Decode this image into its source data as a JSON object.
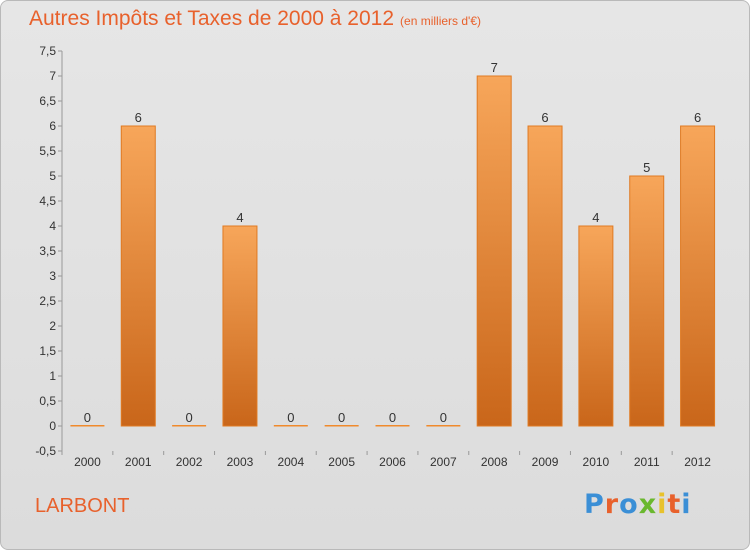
{
  "header": {
    "title": "Autres Impôts et Taxes de 2000 à 2012",
    "unit": "(en milliers d'€)"
  },
  "footer": {
    "commune": "LARBONT",
    "logo": "Proxiti",
    "logo_colors": [
      "#3b8fd6",
      "#e8612c",
      "#3b8fd6",
      "#6ab82e",
      "#e8c22c",
      "#e8612c",
      "#3b8fd6"
    ]
  },
  "chart_data": {
    "type": "bar",
    "title": "Autres Impôts et Taxes de 2000 à 2012",
    "subtitle": "(en milliers d'€)",
    "xlabel": "",
    "ylabel": "",
    "categories": [
      "2000",
      "2001",
      "2002",
      "2003",
      "2004",
      "2005",
      "2006",
      "2007",
      "2008",
      "2009",
      "2010",
      "2011",
      "2012"
    ],
    "values": [
      0,
      6,
      0,
      4,
      0,
      0,
      0,
      0,
      7,
      6,
      4,
      5,
      6
    ],
    "value_labels": [
      "0",
      "6",
      "0",
      "4",
      "0",
      "0",
      "0",
      "0",
      "7",
      "6",
      "4",
      "5",
      "6"
    ],
    "ylim": [
      -0.5,
      7.5
    ],
    "y_ticks": [
      "-0,5",
      "0",
      "0,5",
      "1",
      "1,5",
      "2",
      "2,5",
      "3",
      "3,5",
      "4",
      "4,5",
      "5",
      "5,5",
      "6",
      "6,5",
      "7",
      "7,5"
    ],
    "y_tick_values": [
      -0.5,
      0,
      0.5,
      1,
      1.5,
      2,
      2.5,
      3,
      3.5,
      4,
      4.5,
      5,
      5.5,
      6,
      6.5,
      7,
      7.5
    ],
    "grid": false,
    "legend": "none",
    "bar_color": "#f08a2c",
    "bar_color_light": "#f7a65a",
    "bar_color_dark": "#c9661a"
  }
}
